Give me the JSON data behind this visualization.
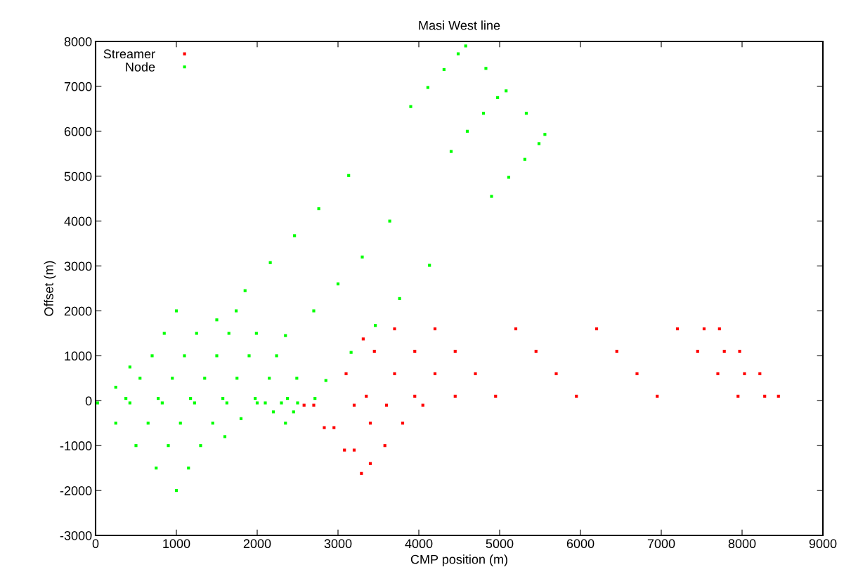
{
  "chart_data": {
    "type": "scatter",
    "title": "Masi West line",
    "xlabel": "CMP position (m)",
    "ylabel": "Offset (m)",
    "xlim": [
      0,
      9000
    ],
    "xticks": [
      0,
      1000,
      2000,
      3000,
      4000,
      5000,
      6000,
      7000,
      8000,
      9000
    ],
    "ylim": [
      -3000,
      8000
    ],
    "yticks": [
      -3000,
      -2000,
      -1000,
      0,
      1000,
      2000,
      3000,
      4000,
      5000,
      6000,
      7000,
      8000
    ],
    "grid": false,
    "legend": "top left",
    "marker": "square",
    "series": [
      {
        "name": "Streamer",
        "color": "#ff0000",
        "x": [
          3350,
          3100,
          3950,
          3700,
          3450,
          3312,
          4450,
          4200,
          3950,
          3700,
          4950,
          4700,
          4450,
          4200,
          5950,
          5700,
          5450,
          5200,
          6950,
          6700,
          6450,
          6200,
          7950,
          7700,
          7450,
          7200,
          8280,
          8030,
          7780,
          7530,
          7720,
          7970,
          8220,
          8450,
          2580,
          2830,
          3080,
          3290,
          2700,
          2950,
          3200,
          3400,
          3200,
          3600,
          4050,
          3400,
          3800,
          3580
        ],
        "values": [
          100,
          600,
          100,
          600,
          1100,
          1375,
          100,
          600,
          1100,
          1600,
          100,
          600,
          1100,
          1600,
          100,
          600,
          1100,
          1600,
          100,
          600,
          1100,
          1600,
          100,
          600,
          1100,
          1600,
          100,
          600,
          1100,
          1600,
          1600,
          1100,
          600,
          100,
          -100,
          -600,
          -1100,
          -1620,
          -100,
          -600,
          -1100,
          -1400,
          -100,
          -100,
          -100,
          -500,
          -500,
          -1000
        ]
      },
      {
        "name": "Node",
        "color": "#00ff00",
        "x": [
          25,
          250,
          500,
          750,
          1000,
          425,
          650,
          900,
          1150,
          825,
          1050,
          1300,
          1225,
          1450,
          1600,
          1625,
          1800,
          2000,
          375,
          250,
          775,
          550,
          425,
          1175,
          950,
          700,
          1575,
          1350,
          1100,
          850,
          1975,
          1750,
          1500,
          1250,
          1000,
          2375,
          2150,
          1900,
          1650,
          1500,
          2715,
          2490,
          2240,
          1990,
          1740,
          2100,
          2300,
          2500,
          2200,
          2350,
          2450,
          2850,
          2350,
          1850,
          3162,
          2700,
          2162,
          3462,
          3000,
          2462,
          3762,
          3300,
          2762,
          4132,
          3640,
          3132,
          4900,
          4400,
          3900,
          5112,
          4600,
          4112,
          5312,
          4800,
          4312,
          5487,
          4975,
          4487,
          4580,
          4830,
          5080,
          5330,
          5560
        ],
        "values": [
          -50,
          -500,
          -1000,
          -1500,
          -2000,
          -50,
          -500,
          -1000,
          -1500,
          -50,
          -500,
          -1000,
          -50,
          -500,
          -800,
          -50,
          -400,
          -50,
          50,
          300,
          50,
          500,
          750,
          50,
          500,
          1000,
          50,
          500,
          1000,
          1500,
          50,
          500,
          1000,
          1500,
          2000,
          50,
          500,
          1000,
          1500,
          1800,
          50,
          500,
          1000,
          1500,
          2000,
          -50,
          -50,
          -50,
          -250,
          -500,
          -250,
          450,
          1450,
          2450,
          1075,
          2000,
          3075,
          1675,
          2600,
          3675,
          2275,
          3200,
          4275,
          3015,
          4000,
          5015,
          4550,
          5550,
          6550,
          4975,
          6000,
          6975,
          5375,
          6400,
          7375,
          5725,
          6750,
          7725,
          7900,
          7400,
          6900,
          6400,
          5930
        ]
      }
    ]
  }
}
